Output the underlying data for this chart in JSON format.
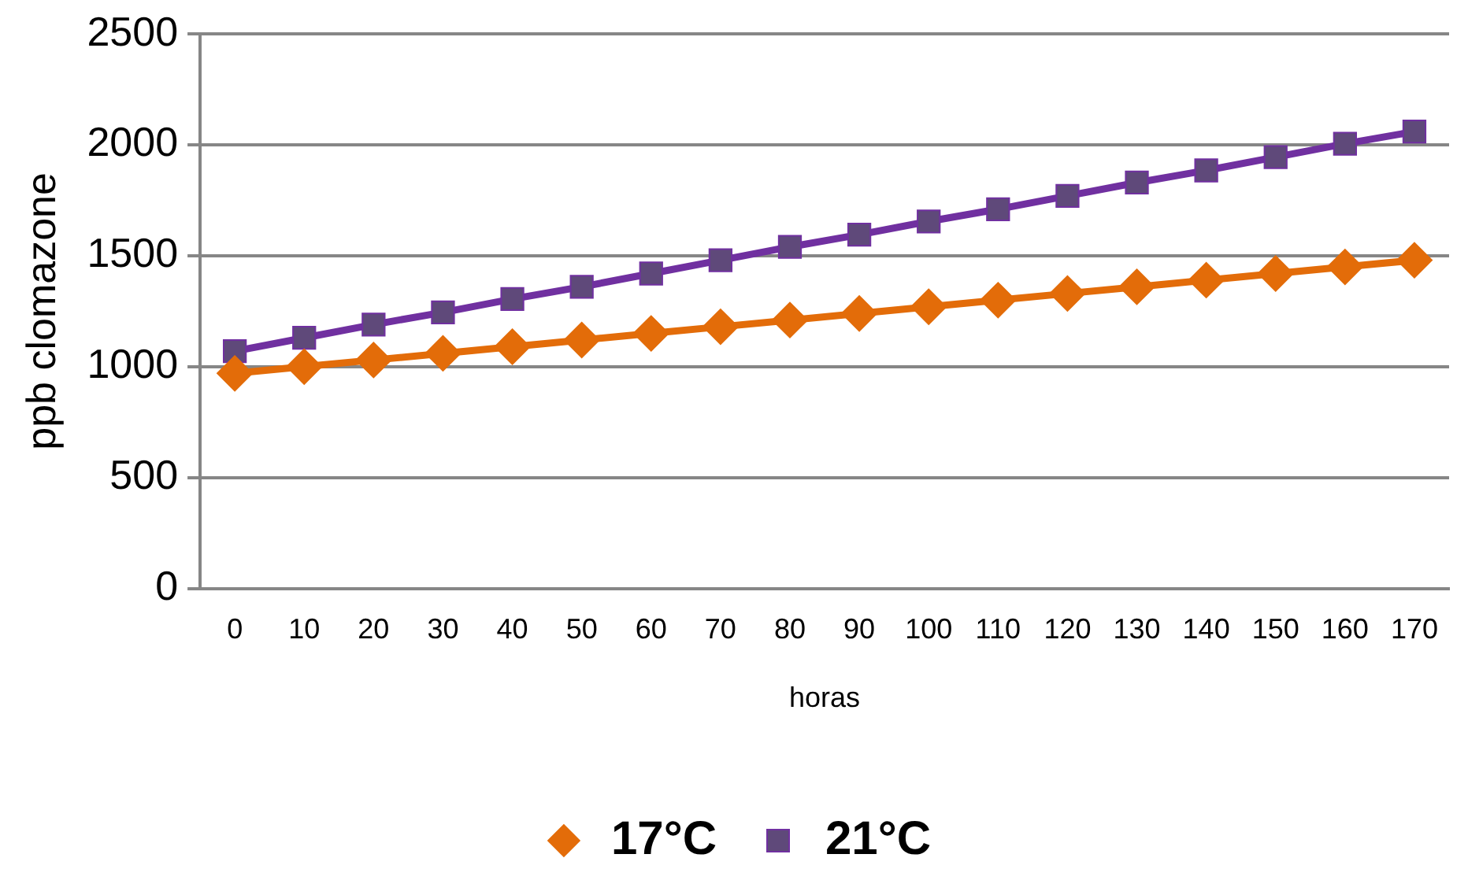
{
  "chart_data": {
    "type": "line",
    "xlabel": "horas",
    "ylabel": "ppb clomazone",
    "categories": [
      "0",
      "10",
      "20",
      "30",
      "40",
      "50",
      "60",
      "70",
      "80",
      "90",
      "100",
      "110",
      "120",
      "130",
      "140",
      "150",
      "160",
      "170"
    ],
    "series": [
      {
        "name": "17°C",
        "color": "#e36c09",
        "marker": "diamond",
        "values": [
          970,
          1000,
          1030,
          1060,
          1090,
          1120,
          1150,
          1180,
          1210,
          1240,
          1270,
          1300,
          1330,
          1360,
          1390,
          1420,
          1450,
          1480
        ]
      },
      {
        "name": "21°C",
        "color": "#7030a0",
        "marker": "square",
        "values": [
          1070,
          1130,
          1190,
          1245,
          1305,
          1360,
          1420,
          1480,
          1540,
          1595,
          1655,
          1710,
          1770,
          1830,
          1885,
          1945,
          2005,
          2060
        ]
      }
    ],
    "ylim": [
      0,
      2500
    ],
    "yticks": [
      0,
      500,
      1000,
      1500,
      2000,
      2500
    ],
    "grid": "y",
    "legend": "bottom",
    "line_style": "solid"
  }
}
